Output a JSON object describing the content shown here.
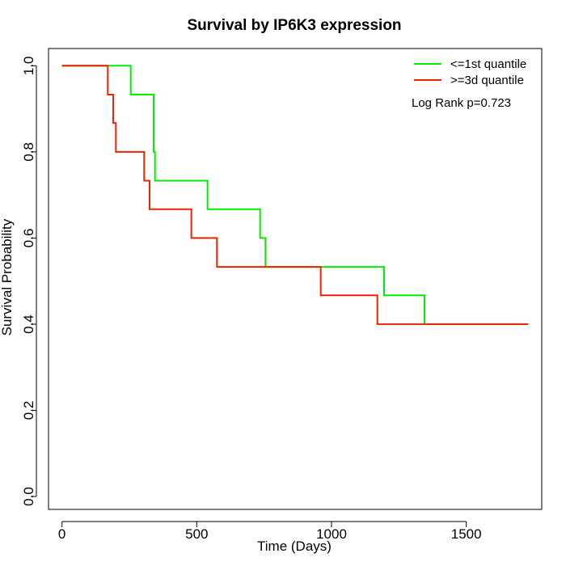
{
  "chart_data": {
    "type": "line",
    "style": "step",
    "title": "Survival by IP6K3 expression",
    "xlabel": "Time (Days)",
    "ylabel": "Survival Probability",
    "xlim": [
      -50,
      1780
    ],
    "ylim": [
      -0.03,
      1.04
    ],
    "xticks": [
      0,
      500,
      1000,
      1500
    ],
    "yticks": [
      0.0,
      0.2,
      0.4,
      0.6,
      0.8,
      1.0
    ],
    "xtick_labels": [
      "0",
      "500",
      "1000",
      "1500"
    ],
    "ytick_labels": [
      "0.0",
      "0.2",
      "0.4",
      "0.6",
      "0.8",
      "1.0"
    ],
    "legend_position": "top-right",
    "annotation": "Log Rank p=0.723",
    "grid": false,
    "series": [
      {
        "name": "<=1st quantile",
        "color": "#00ee00",
        "x": [
          0,
          255,
          340,
          345,
          540,
          735,
          755,
          1195,
          1345,
          1730
        ],
        "y": [
          1.0,
          0.933,
          0.8,
          0.733,
          0.667,
          0.6,
          0.533,
          0.467,
          0.4,
          0.4
        ]
      },
      {
        "name": ">=3d quantile",
        "color": "#ee2200",
        "x": [
          0,
          170,
          190,
          200,
          305,
          325,
          480,
          575,
          960,
          1170,
          1730
        ],
        "y": [
          1.0,
          0.933,
          0.867,
          0.8,
          0.733,
          0.667,
          0.6,
          0.533,
          0.467,
          0.4,
          0.4
        ]
      }
    ]
  }
}
